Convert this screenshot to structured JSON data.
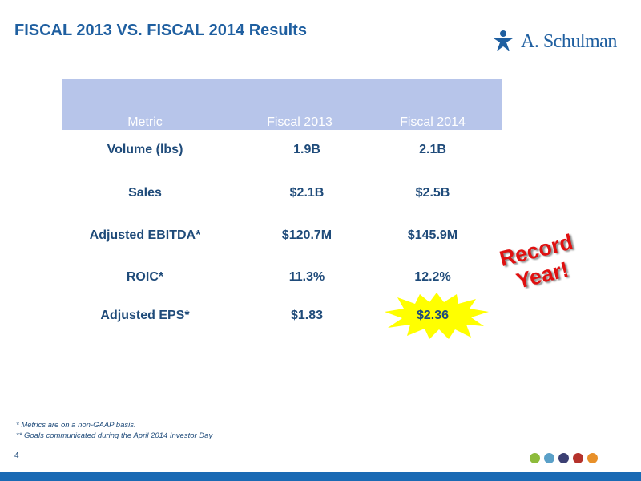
{
  "title": "FISCAL 2013 VS. FISCAL 2014 Results",
  "logo": {
    "text": "A. Schulman",
    "icon": "schulman-figure-icon",
    "color": "#1f5fa0"
  },
  "table": {
    "headers": [
      "Metric",
      "Fiscal 2013",
      "Fiscal 2014"
    ],
    "header_bg": "#b7c5ea",
    "rows": [
      [
        "Volume (lbs)",
        "1.9B",
        "2.1B"
      ],
      [
        "Sales",
        "$2.1B",
        "$2.5B"
      ],
      [
        "Adjusted EBITDA*",
        "$120.7M",
        "$145.9M"
      ],
      [
        "ROIC*",
        "11.3%",
        "12.2%"
      ],
      [
        "Adjusted EPS*",
        "$1.83",
        "$2.36"
      ]
    ]
  },
  "callout": {
    "line1": "Record",
    "line2": "Year!",
    "color": "#e01010"
  },
  "highlight_color": "#ffff00",
  "footnotes": [
    "* Metrics are on a non-GAAP basis.",
    "** Goals communicated during the April 2014 Investor Day"
  ],
  "page_number": "4",
  "dot_colors": [
    "#8dbb3b",
    "#5aa0c8",
    "#3b3f73",
    "#b5322b",
    "#e8902a"
  ],
  "bar_color": "#1a6ab4"
}
